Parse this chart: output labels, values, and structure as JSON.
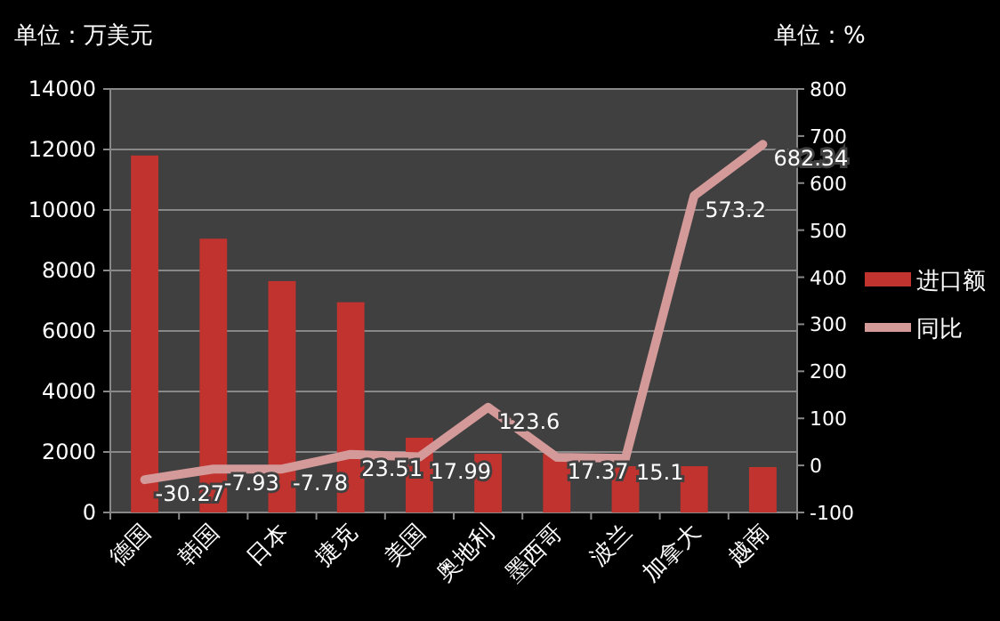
{
  "chart_data": {
    "type": "bar",
    "ylabel": "单位：万美元",
    "y2label": "单位：%",
    "categories": [
      "德国",
      "韩国",
      "日本",
      "捷克",
      "美国",
      "奥地利",
      "墨西哥",
      "波兰",
      "加拿大",
      "越南"
    ],
    "series": [
      {
        "name": "进口额",
        "color": "#c0332f",
        "values": [
          11800,
          9050,
          7650,
          6950,
          2470,
          1940,
          1940,
          1530,
          1530,
          1500
        ]
      },
      {
        "name": "同比",
        "type": "line",
        "axis": "y2",
        "color": "#d49a9a",
        "values": [
          -30.27,
          -7.93,
          -7.78,
          23.51,
          17.99,
          123.6,
          17.37,
          15.1,
          573.2,
          682.34
        ],
        "value_labels": [
          "-30.27",
          "-7.93",
          "-7.78",
          "23.51",
          "17.99",
          "123.6",
          "17.37",
          "15.1",
          "573.2",
          "682.34"
        ]
      }
    ],
    "ylim": [
      0,
      14000
    ],
    "yticks": [
      0,
      2000,
      4000,
      6000,
      8000,
      10000,
      12000,
      14000
    ],
    "y2lim": [
      -100,
      800
    ],
    "y2ticks": [
      -100,
      0,
      100,
      200,
      300,
      400,
      500,
      600,
      700,
      800
    ],
    "grid": "y",
    "legend": "right"
  }
}
